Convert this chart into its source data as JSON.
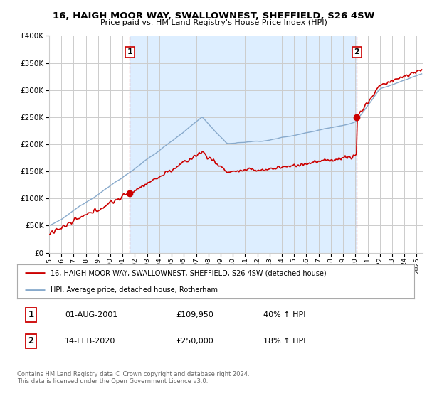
{
  "title": "16, HAIGH MOOR WAY, SWALLOWNEST, SHEFFIELD, S26 4SW",
  "subtitle": "Price paid vs. HM Land Registry's House Price Index (HPI)",
  "legend_line1": "16, HAIGH MOOR WAY, SWALLOWNEST, SHEFFIELD, S26 4SW (detached house)",
  "legend_line2": "HPI: Average price, detached house, Rotherham",
  "sale1_label": "1",
  "sale1_date": "01-AUG-2001",
  "sale1_price": "£109,950",
  "sale1_hpi": "40% ↑ HPI",
  "sale2_label": "2",
  "sale2_date": "14-FEB-2020",
  "sale2_price": "£250,000",
  "sale2_hpi": "18% ↑ HPI",
  "footnote": "Contains HM Land Registry data © Crown copyright and database right 2024.\nThis data is licensed under the Open Government Licence v3.0.",
  "sale1_year": 2001.583,
  "sale1_value": 109950,
  "sale2_year": 2020.12,
  "sale2_value": 250000,
  "red_color": "#cc0000",
  "blue_color": "#88aacc",
  "shade_color": "#ddeeff",
  "dashed_color": "#cc0000",
  "bg_color": "#ffffff",
  "grid_color": "#cccccc",
  "ylim": [
    0,
    400000
  ],
  "xlim_start": 1995.0,
  "xlim_end": 2025.5
}
